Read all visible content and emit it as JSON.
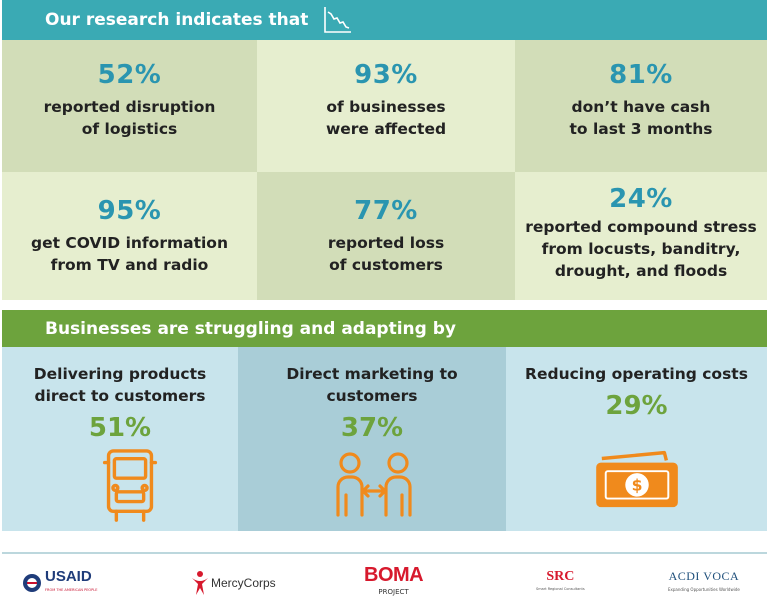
{
  "header": {
    "title": "Our research indicates that"
  },
  "stats": [
    {
      "value": "52%",
      "line1": "reported disruption",
      "line2": "of logistics",
      "line3": ""
    },
    {
      "value": "93%",
      "line1": "of businesses",
      "line2": "were affected",
      "line3": ""
    },
    {
      "value": "81%",
      "line1": "don’t have cash",
      "line2": "to last 3 months",
      "line3": ""
    },
    {
      "value": "95%",
      "line1": "get COVID information",
      "line2": "from TV and radio",
      "line3": ""
    },
    {
      "value": "77%",
      "line1": "reported loss",
      "line2": "of customers",
      "line3": ""
    },
    {
      "value": "24%",
      "line1": "reported compound stress",
      "line2": "from locusts, banditry,",
      "line3": "drought, and floods"
    }
  ],
  "adapting": {
    "title": "Businesses are struggling and adapting by",
    "items": [
      {
        "line1": "Delivering products",
        "line2": "direct to customers",
        "value": "51%",
        "icon": "delivery-truck-icon"
      },
      {
        "line1": "Direct marketing to",
        "line2": "customers",
        "value": "37%",
        "icon": "people-exchange-icon"
      },
      {
        "line1": "Reducing operating costs",
        "line2": "",
        "value": "29%",
        "icon": "cash-icon"
      }
    ]
  },
  "footer": {
    "usaid": {
      "name": "USAID",
      "tagline": "FROM THE AMERICAN PEOPLE"
    },
    "mercycorps": {
      "name": "MercyCorps"
    },
    "boma": {
      "name": "BOMA",
      "sub": "PROJECT"
    },
    "src": {
      "name": "SRC",
      "tagline": "Smart Regional Consultants"
    },
    "acdivoca": {
      "name": "ACDI VOCA",
      "tagline": "Expanding Opportunities Worldwide"
    }
  },
  "colors": {
    "teal": "#3aaab4",
    "green": "#6da33d",
    "stat_blue": "#2a95b0",
    "cell_dark": "#d2ddb8",
    "cell_light": "#e6eecf",
    "icon_orange": "#f08a1c",
    "adapt_light": "#c8e4ec",
    "adapt_dark": "#a9cdd7"
  }
}
